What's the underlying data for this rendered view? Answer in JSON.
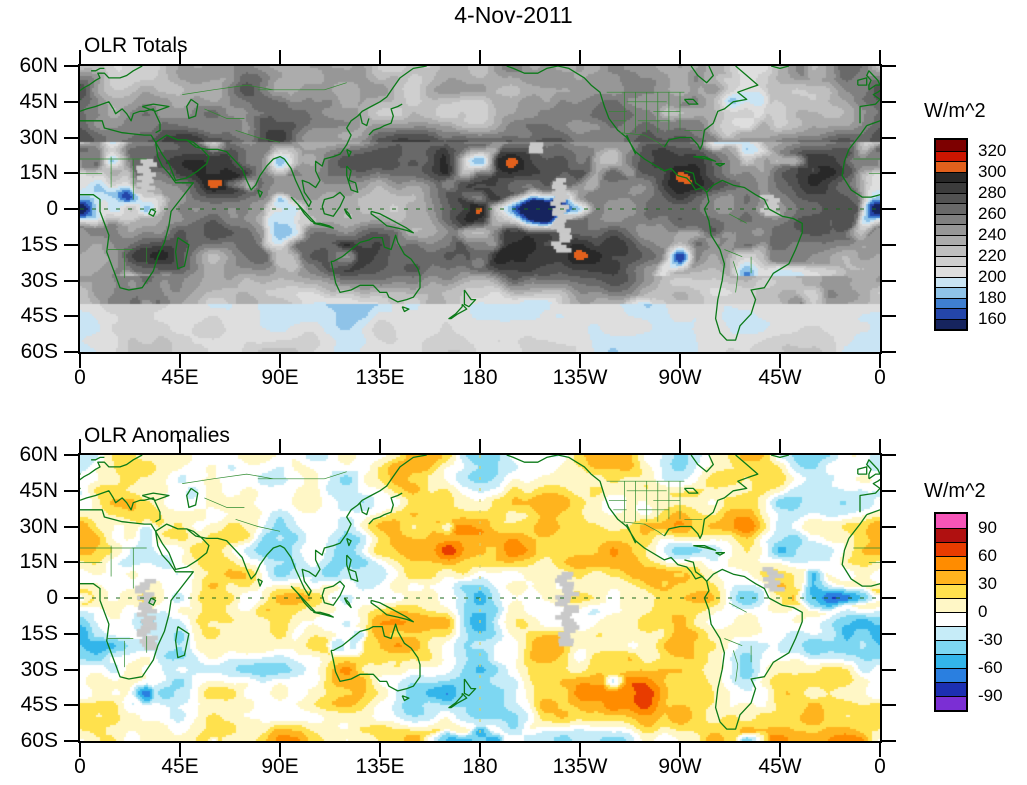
{
  "title": "4-Nov-2011",
  "chart_data": [
    {
      "type": "heatmap",
      "title": "OLR Totals",
      "units_label": "W/m^2",
      "x_ticks": [
        "0",
        "45E",
        "90E",
        "135E",
        "180",
        "135W",
        "90W",
        "45W",
        "0"
      ],
      "y_ticks": [
        "60N",
        "45N",
        "30N",
        "15N",
        "0",
        "15S",
        "30S",
        "45S",
        "60S"
      ],
      "lon_range": [
        0,
        360
      ],
      "lat_range": [
        -60,
        60
      ],
      "grid": false,
      "colorbar": {
        "position": "right",
        "tick_labels": [
          "320",
          "300",
          "280",
          "260",
          "240",
          "220",
          "200",
          "180",
          "160"
        ],
        "levels": [
          160,
          170,
          180,
          190,
          200,
          210,
          220,
          230,
          240,
          250,
          260,
          270,
          280,
          290,
          300,
          310,
          320
        ],
        "colors_low_to_high": [
          "#16245e",
          "#2446aa",
          "#3f7fd0",
          "#8fc3e8",
          "#c9e4f4",
          "#dedede",
          "#cfcfcf",
          "#bfbfbf",
          "#acacac",
          "#979797",
          "#808080",
          "#696969",
          "#525252",
          "#3c3c3c",
          "#282828",
          "#e2601c",
          "#cc1500",
          "#7d0000"
        ]
      },
      "map_features": {
        "coastline_color": "#0b7a18",
        "border_color": "#2e8b2e",
        "missing_data_color": "#c9c9c9",
        "equator_dashed": true,
        "dateline_dashed": false
      }
    },
    {
      "type": "heatmap",
      "title": "OLR Anomalies",
      "units_label": "W/m^2",
      "x_ticks": [
        "0",
        "45E",
        "90E",
        "135E",
        "180",
        "135W",
        "90W",
        "45W",
        "0"
      ],
      "y_ticks": [
        "60N",
        "45N",
        "30N",
        "15N",
        "0",
        "15S",
        "30S",
        "45S",
        "60S"
      ],
      "lon_range": [
        0,
        360
      ],
      "lat_range": [
        -60,
        60
      ],
      "grid": false,
      "colorbar": {
        "position": "right",
        "tick_labels": [
          "90",
          "60",
          "30",
          "0",
          "-30",
          "-60",
          "-90"
        ],
        "levels": [
          -90,
          -75,
          -60,
          -45,
          -30,
          -15,
          0,
          15,
          30,
          45,
          60,
          75,
          90
        ],
        "colors_low_to_high": [
          "#7b2fd4",
          "#1c2fb2",
          "#2a7fe0",
          "#33b5ea",
          "#7dd7f2",
          "#c6ecf8",
          "#ffffff",
          "#fff7c6",
          "#ffe14d",
          "#ffb41e",
          "#ff8c00",
          "#e83c00",
          "#b01010",
          "#f655b8"
        ]
      },
      "map_features": {
        "coastline_color": "#0b7a18",
        "border_color": "#2e8b2e",
        "missing_data_color": "#c9c9c9",
        "equator_dashed": true,
        "dateline_dashed": true
      }
    }
  ]
}
